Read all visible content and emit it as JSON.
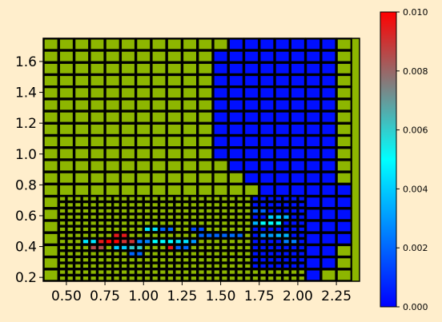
{
  "chart_data": {
    "type": "heatmap",
    "title": "",
    "xlabel": "",
    "ylabel": "",
    "xlim": [
      0.35,
      2.4
    ],
    "ylim": [
      0.175,
      1.75
    ],
    "x_ticks": [
      "0.50",
      "0.75",
      "1.00",
      "1.25",
      "1.50",
      "1.75",
      "2.00",
      "2.25"
    ],
    "y_ticks": [
      "0.2",
      "0.4",
      "0.6",
      "0.8",
      "1.0",
      "1.2",
      "1.4",
      "1.6"
    ],
    "colorbar": {
      "range": [
        0.0,
        0.01
      ],
      "ticks": [
        "0.000",
        "0.002",
        "0.004",
        "0.006",
        "0.008",
        "0.010"
      ],
      "colors": [
        "#0000ff",
        "#0080ff",
        "#00ffff",
        "#808080",
        "#ff0000"
      ]
    },
    "background_color": "#8db600",
    "cell_edge_color": "#000000",
    "coarse_grid": {
      "x0": 0.35,
      "dx": 0.1,
      "nx": 20,
      "y0": 0.175,
      "dy": 0.0788,
      "ny": 20
    },
    "refined_region": {
      "x0": 0.45,
      "x1": 2.05,
      "y0": 0.175,
      "y1": 0.73,
      "nx": 32,
      "ny": 14
    },
    "low_value_region": [
      {
        "x0": 1.55,
        "x1": 2.25,
        "y0": 1.73,
        "y1": 1.65
      },
      {
        "x0": 1.45,
        "x1": 2.25,
        "y0": 1.65,
        "y1": 0.97
      },
      {
        "x0": 1.55,
        "x1": 2.25,
        "y0": 0.97,
        "y1": 0.89
      },
      {
        "x0": 1.65,
        "x1": 2.25,
        "y0": 0.89,
        "y1": 0.81
      },
      {
        "x0": 1.75,
        "x1": 2.4,
        "y0": 0.81,
        "y1": 0.73
      },
      {
        "x0": 1.7,
        "x1": 2.05,
        "y0": 0.73,
        "y1": 0.25
      },
      {
        "x0": 2.05,
        "x1": 2.4,
        "y0": 0.73,
        "y1": 0.41
      },
      {
        "x0": 2.05,
        "x1": 2.25,
        "y0": 0.41,
        "y1": 0.25
      },
      {
        "x0": 2.05,
        "x1": 2.15,
        "y0": 0.25,
        "y1": 0.175
      }
    ],
    "values": [
      {
        "x": 0.85,
        "y": 0.46,
        "v": 0.0095
      },
      {
        "x": 0.8,
        "y": 0.44,
        "v": 0.01
      },
      {
        "x": 0.75,
        "y": 0.42,
        "v": 0.0095
      },
      {
        "x": 0.9,
        "y": 0.42,
        "v": 0.009
      },
      {
        "x": 0.7,
        "y": 0.4,
        "v": 0.0085
      },
      {
        "x": 0.65,
        "y": 0.44,
        "v": 0.0045
      },
      {
        "x": 0.85,
        "y": 0.38,
        "v": 0.004
      },
      {
        "x": 0.95,
        "y": 0.4,
        "v": 0.006
      },
      {
        "x": 1.0,
        "y": 0.44,
        "v": 0.0025
      },
      {
        "x": 1.05,
        "y": 0.44,
        "v": 0.0055
      },
      {
        "x": 1.1,
        "y": 0.44,
        "v": 0.005
      },
      {
        "x": 1.15,
        "y": 0.44,
        "v": 0.005
      },
      {
        "x": 1.2,
        "y": 0.44,
        "v": 0.005
      },
      {
        "x": 1.2,
        "y": 0.4,
        "v": 0.0095
      },
      {
        "x": 1.25,
        "y": 0.44,
        "v": 0.0045
      },
      {
        "x": 1.3,
        "y": 0.44,
        "v": 0.003
      },
      {
        "x": 1.4,
        "y": 0.46,
        "v": 0.002
      },
      {
        "x": 1.5,
        "y": 0.48,
        "v": 0.002
      },
      {
        "x": 1.55,
        "y": 0.48,
        "v": 0.0022
      },
      {
        "x": 1.6,
        "y": 0.48,
        "v": 0.002
      },
      {
        "x": 1.75,
        "y": 0.54,
        "v": 0.0035
      },
      {
        "x": 1.8,
        "y": 0.56,
        "v": 0.005
      },
      {
        "x": 1.85,
        "y": 0.54,
        "v": 0.005
      },
      {
        "x": 1.85,
        "y": 0.6,
        "v": 0.004
      },
      {
        "x": 1.8,
        "y": 0.46,
        "v": 0.003
      },
      {
        "x": 1.9,
        "y": 0.46,
        "v": 0.0035
      },
      {
        "x": 1.9,
        "y": 0.6,
        "v": 0.0035
      },
      {
        "x": 1.75,
        "y": 0.62,
        "v": 0.002
      },
      {
        "x": 1.95,
        "y": 0.42,
        "v": 0.0025
      },
      {
        "x": 1.05,
        "y": 0.52,
        "v": 0.0045
      },
      {
        "x": 1.15,
        "y": 0.5,
        "v": 0.002
      },
      {
        "x": 1.25,
        "y": 0.4,
        "v": 0.002
      },
      {
        "x": 0.95,
        "y": 0.36,
        "v": 0.002
      },
      {
        "x": 1.35,
        "y": 0.5,
        "v": 0.0015
      }
    ]
  }
}
